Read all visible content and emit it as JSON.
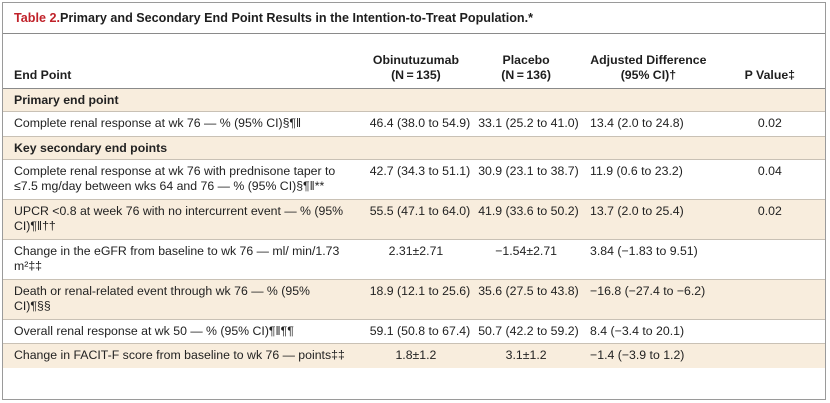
{
  "table": {
    "title_number": "Table 2.",
    "title_text": " Primary and Secondary End Point Results in the Intention-to-Treat Population.*",
    "headers": {
      "endpoint": "End Point",
      "obi_line1": "Obinutuzumab",
      "obi_line2": "(N = 135)",
      "pla_line1": "Placebo",
      "pla_line2": "(N = 136)",
      "adj_line1": "Adjusted Difference",
      "adj_line2": "(95% CI)†",
      "pvalue": "P Value‡"
    },
    "sections": {
      "primary": "Primary end point",
      "secondary": "Key secondary end points"
    },
    "rows": [
      {
        "endpoint": "Complete renal response at wk 76 — % (95% CI)§¶‖",
        "obi": "46.4 (38.0 to 54.9)",
        "pla": "33.1 (25.2 to 41.0)",
        "adj": "13.4 (2.0 to 24.8)",
        "p": "0.02"
      },
      {
        "endpoint": "Complete renal response at wk 76 with prednisone taper to ≤7.5 mg/day between wks 64 and 76 — % (95% CI)§¶‖**",
        "obi": "42.7 (34.3 to 51.1)",
        "pla": "30.9 (23.1 to 38.7)",
        "adj": "11.9 (0.6 to 23.2)",
        "p": "0.04"
      },
      {
        "endpoint": "UPCR <0.8 at week 76 with no intercurrent event — % (95% CI)¶‖††",
        "obi": "55.5 (47.1 to 64.0)",
        "pla": "41.9 (33.6 to 50.2)",
        "adj": "13.7 (2.0 to 25.4)",
        "p": "0.02"
      },
      {
        "endpoint": "Change in the eGFR from baseline to wk 76 — ml/ min/1.73 m²‡‡",
        "obi": "2.31±2.71",
        "pla": "−1.54±2.71",
        "adj": "3.84 (−1.83 to 9.51)",
        "p": ""
      },
      {
        "endpoint": "Death or renal-related event through wk 76 — % (95% CI)¶§§",
        "obi": "18.9 (12.1 to 25.6)",
        "pla": "35.6 (27.5 to 43.8)",
        "adj": "−16.8 (−27.4 to −6.2)",
        "p": ""
      },
      {
        "endpoint": "Overall renal response at wk 50 — % (95% CI)¶‖¶¶",
        "obi": "59.1 (50.8 to 67.4)",
        "pla": "50.7 (42.2 to 59.2)",
        "adj": "8.4 (−3.4 to 20.1)",
        "p": ""
      },
      {
        "endpoint": "Change in FACIT-F score from baseline to wk 76 — points‡‡",
        "obi": "1.8±1.2",
        "pla": "3.1±1.2",
        "adj": "−1.4 (−3.9 to 1.2)",
        "p": ""
      }
    ]
  }
}
